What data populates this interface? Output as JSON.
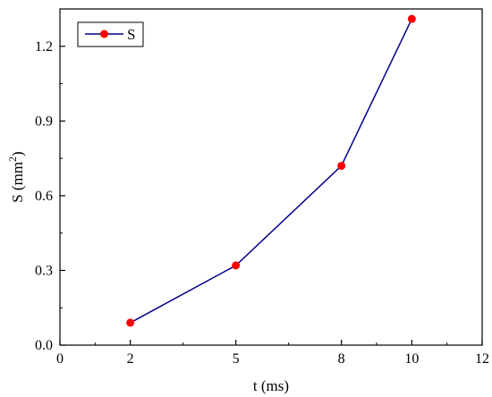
{
  "chart_data": {
    "type": "line",
    "xlabel": "t (ms)",
    "ylabel_base": "S (mm",
    "ylabel_sup": "2",
    "ylabel_end": ")",
    "xlim": [
      0,
      12
    ],
    "ylim": [
      0,
      1.35
    ],
    "xticks": [
      0,
      2,
      5,
      8,
      10,
      12
    ],
    "xtick_labels": [
      "0",
      "2",
      "5",
      "8",
      "10",
      "12"
    ],
    "yticks": [
      0.0,
      0.3,
      0.6,
      0.9,
      1.2
    ],
    "ytick_labels": [
      "0.0",
      "0.3",
      "0.6",
      "0.9",
      "1.2"
    ],
    "grid": false,
    "legend_position": "top-left",
    "series": [
      {
        "name": "S",
        "x": [
          2,
          5,
          8,
          10
        ],
        "y": [
          0.09,
          0.32,
          0.72,
          1.31
        ],
        "line_color": "#00008b",
        "marker_color": "#ff0000"
      }
    ]
  }
}
